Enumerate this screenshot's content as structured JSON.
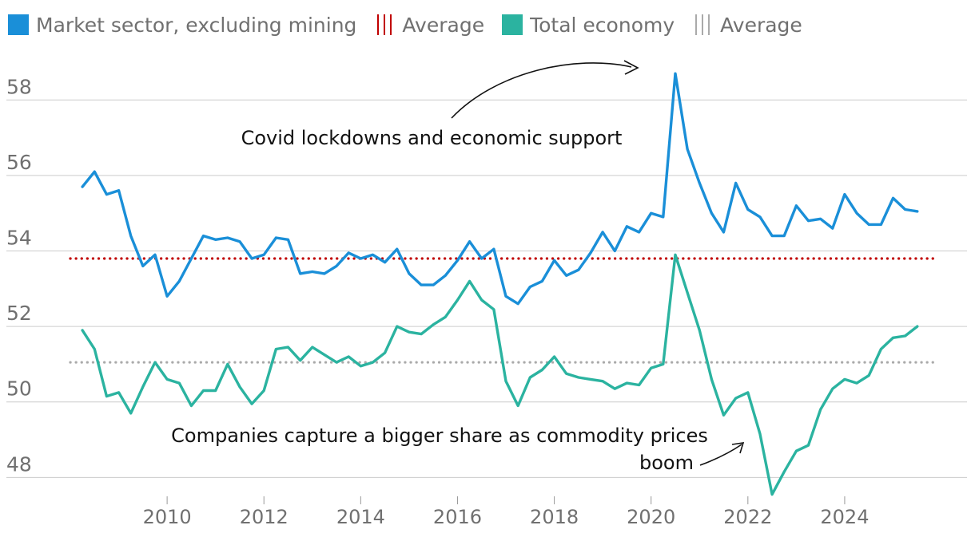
{
  "legend": {
    "series1": "Market sector, excluding mining",
    "avg1": "Average",
    "series2": "Total economy",
    "avg2": "Average"
  },
  "annotations": {
    "covid": "Covid lockdowns and economic support",
    "commodity_line1": "Companies capture a bigger share as commodity prices",
    "commodity_line2": "boom"
  },
  "colors": {
    "market": "#1a8fd8",
    "total": "#2bb3a0",
    "market_avg": "#c00000",
    "total_avg": "#aaaaaa",
    "grid": "#cccccc"
  },
  "chart_data": {
    "type": "line",
    "title": "",
    "xlabel": "",
    "ylabel": "",
    "xlim": [
      2008.0,
      2025.9
    ],
    "ylim": [
      47.5,
      59.0
    ],
    "y_ticks": [
      48,
      50,
      52,
      54,
      56,
      58
    ],
    "x_ticks": [
      2010,
      2012,
      2014,
      2016,
      2018,
      2020,
      2022,
      2024
    ],
    "x_start": 2008.25,
    "x_step": 0.25,
    "series": [
      {
        "name": "Market sector, excluding mining",
        "values": [
          55.7,
          56.1,
          55.5,
          55.6,
          54.4,
          53.6,
          53.9,
          52.8,
          53.2,
          53.8,
          54.4,
          54.3,
          54.35,
          54.25,
          53.8,
          53.9,
          54.35,
          54.3,
          53.4,
          53.45,
          53.4,
          53.6,
          53.95,
          53.8,
          53.9,
          53.7,
          54.05,
          53.4,
          53.1,
          53.1,
          53.35,
          53.75,
          54.25,
          53.8,
          54.05,
          52.8,
          52.6,
          53.05,
          53.2,
          53.75,
          53.35,
          53.5,
          53.95,
          54.5,
          54.0,
          54.65,
          54.5,
          55.0,
          54.9,
          58.7,
          56.7,
          55.8,
          55.0,
          54.5,
          55.8,
          55.1,
          54.9,
          54.4,
          54.4,
          55.2,
          54.8,
          54.85,
          54.6,
          55.5,
          55.0,
          54.7,
          54.7,
          55.4,
          55.1,
          55.05
        ]
      },
      {
        "name": "Total economy",
        "values": [
          51.9,
          51.4,
          50.15,
          50.25,
          49.7,
          50.4,
          51.05,
          50.6,
          50.5,
          49.9,
          50.3,
          50.3,
          51.0,
          50.4,
          49.95,
          50.3,
          51.4,
          51.45,
          51.1,
          51.45,
          51.25,
          51.05,
          51.2,
          50.95,
          51.05,
          51.3,
          52.0,
          51.85,
          51.8,
          52.05,
          52.25,
          52.7,
          53.2,
          52.7,
          52.45,
          50.55,
          49.9,
          50.65,
          50.85,
          51.2,
          50.75,
          50.65,
          50.6,
          50.55,
          50.35,
          50.5,
          50.45,
          50.9,
          51.0,
          53.9,
          52.9,
          51.9,
          50.6,
          49.65,
          50.1,
          50.25,
          49.15,
          47.55,
          48.15,
          48.7,
          48.85,
          49.8,
          50.35,
          50.6,
          50.5,
          50.7,
          51.4,
          51.7,
          51.75,
          52.0
        ]
      },
      {
        "name": "Average (market sector)",
        "constant": 53.8
      },
      {
        "name": "Average (total economy)",
        "constant": 51.05
      }
    ]
  }
}
